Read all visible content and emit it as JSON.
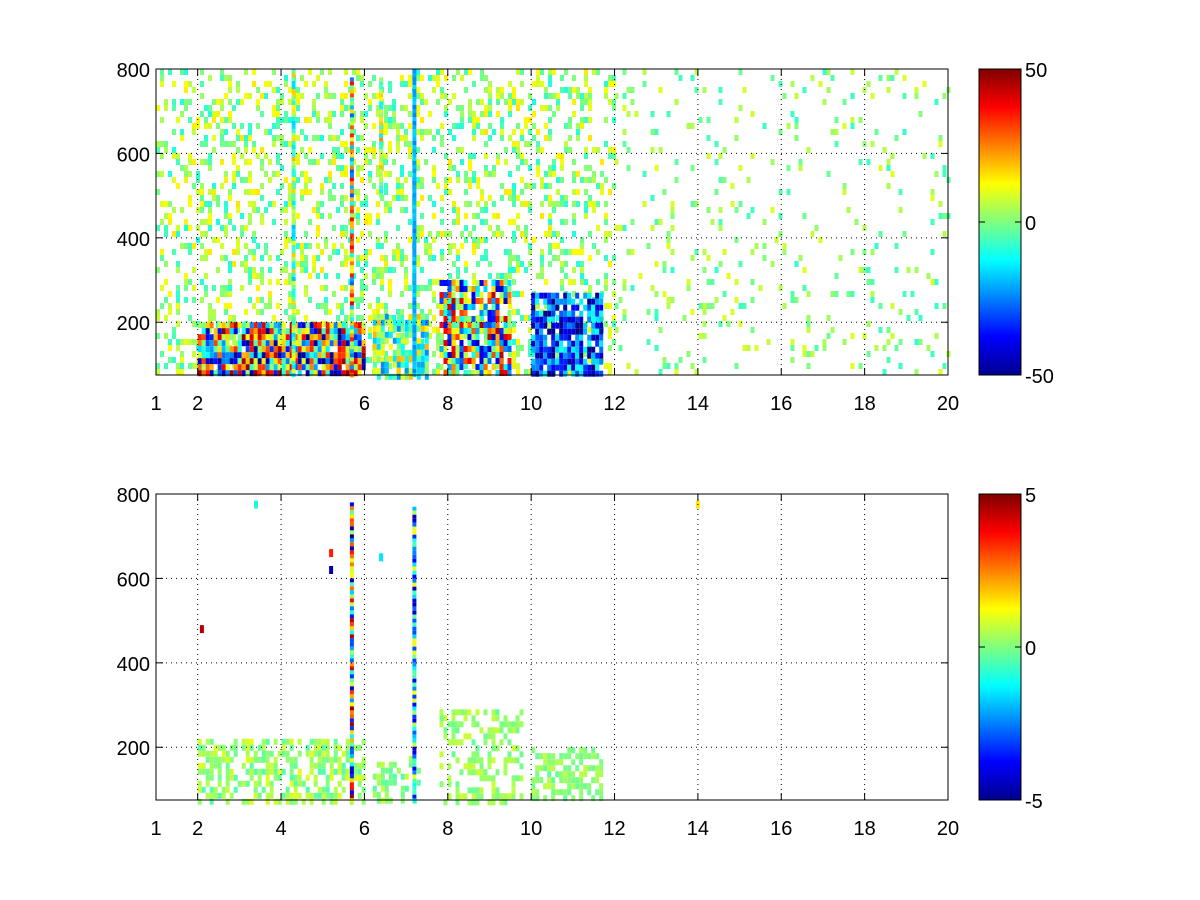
{
  "chart_data": [
    {
      "type": "heatmap",
      "title": "",
      "xlabel": "",
      "ylabel": "",
      "xlim": [
        1,
        20
      ],
      "ylim": [
        75,
        800
      ],
      "xticks": [
        "1",
        "2",
        "4",
        "6",
        "8",
        "10",
        "12",
        "14",
        "16",
        "18",
        "20"
      ],
      "xtick_values": [
        1,
        2,
        4,
        6,
        8,
        10,
        12,
        14,
        16,
        18,
        20
      ],
      "yticks": [
        "200",
        "400",
        "600",
        "800"
      ],
      "ytick_values": [
        200,
        400,
        600,
        800
      ],
      "grid": true,
      "colormap": "jet",
      "clim": [
        -50,
        50
      ],
      "colorbar_ticks": [
        "-50",
        "0",
        "50"
      ],
      "colorbar_tick_values": [
        -50,
        0,
        50
      ],
      "regions": [
        {
          "x": [
            1.0,
            12.0
          ],
          "y": [
            75,
            800
          ],
          "density": 0.3,
          "range": [
            -10,
            15
          ]
        },
        {
          "x": [
            12.0,
            20.0
          ],
          "y": [
            75,
            800
          ],
          "density": 0.08,
          "range": [
            -8,
            10
          ]
        },
        {
          "x": [
            2.0,
            6.0
          ],
          "y": [
            75,
            200
          ],
          "density": 0.95,
          "range": [
            -50,
            50
          ]
        },
        {
          "x": [
            7.8,
            9.5
          ],
          "y": [
            75,
            300
          ],
          "density": 0.8,
          "range": [
            -45,
            45
          ]
        },
        {
          "x": [
            10.0,
            11.7
          ],
          "y": [
            75,
            270
          ],
          "density": 0.85,
          "range": [
            -50,
            -10
          ]
        },
        {
          "x": [
            6.2,
            7.5
          ],
          "y": [
            75,
            220
          ],
          "density": 0.7,
          "range": [
            -25,
            20
          ]
        }
      ],
      "stripes": [
        {
          "x": 5.7,
          "y": [
            75,
            780
          ],
          "range": [
            -30,
            40
          ]
        },
        {
          "x": 7.2,
          "y": [
            75,
            800
          ],
          "range": [
            -25,
            -15
          ]
        },
        {
          "x": 4.3,
          "y": [
            75,
            800
          ],
          "range": [
            -20,
            20
          ]
        },
        {
          "x": 6.4,
          "y": [
            500,
            780
          ],
          "range": [
            -15,
            25
          ]
        }
      ]
    },
    {
      "type": "heatmap",
      "title": "",
      "xlabel": "",
      "ylabel": "",
      "xlim": [
        1,
        20
      ],
      "ylim": [
        75,
        800
      ],
      "xticks": [
        "1",
        "2",
        "4",
        "6",
        "8",
        "10",
        "12",
        "14",
        "16",
        "18",
        "20"
      ],
      "xtick_values": [
        1,
        2,
        4,
        6,
        8,
        10,
        12,
        14,
        16,
        18,
        20
      ],
      "yticks": [
        "200",
        "400",
        "600",
        "800"
      ],
      "ytick_values": [
        200,
        400,
        600,
        800
      ],
      "grid": true,
      "colormap": "jet",
      "clim": [
        -5,
        5
      ],
      "colorbar_ticks": [
        "-5",
        "0",
        "5"
      ],
      "colorbar_tick_values": [
        -5,
        0,
        5
      ],
      "regions": [
        {
          "x": [
            2.0,
            6.0
          ],
          "y": [
            75,
            220
          ],
          "density": 0.55,
          "range": [
            -0.5,
            1.0
          ]
        },
        {
          "x": [
            6.2,
            7.3
          ],
          "y": [
            75,
            180
          ],
          "density": 0.4,
          "range": [
            -0.5,
            0.8
          ]
        },
        {
          "x": [
            7.8,
            9.8
          ],
          "y": [
            75,
            290
          ],
          "density": 0.4,
          "range": [
            -0.3,
            0.8
          ]
        },
        {
          "x": [
            10.0,
            11.7
          ],
          "y": [
            75,
            200
          ],
          "density": 0.55,
          "range": [
            -0.3,
            0.6
          ]
        }
      ],
      "stripes": [
        {
          "x": 5.7,
          "y": [
            75,
            780
          ],
          "range": [
            -5,
            5
          ]
        },
        {
          "x": 7.2,
          "y": [
            75,
            770
          ],
          "range": [
            -4.5,
            1.5
          ]
        }
      ],
      "points": [
        {
          "x": 14.0,
          "y": 775,
          "value": 1.5
        },
        {
          "x": 2.1,
          "y": 480,
          "value": 4.5
        },
        {
          "x": 5.2,
          "y": 620,
          "value": -4.5
        },
        {
          "x": 5.2,
          "y": 660,
          "value": 3.5
        },
        {
          "x": 6.4,
          "y": 650,
          "value": -1.5
        },
        {
          "x": 3.4,
          "y": 775,
          "value": -1.0
        }
      ]
    }
  ]
}
